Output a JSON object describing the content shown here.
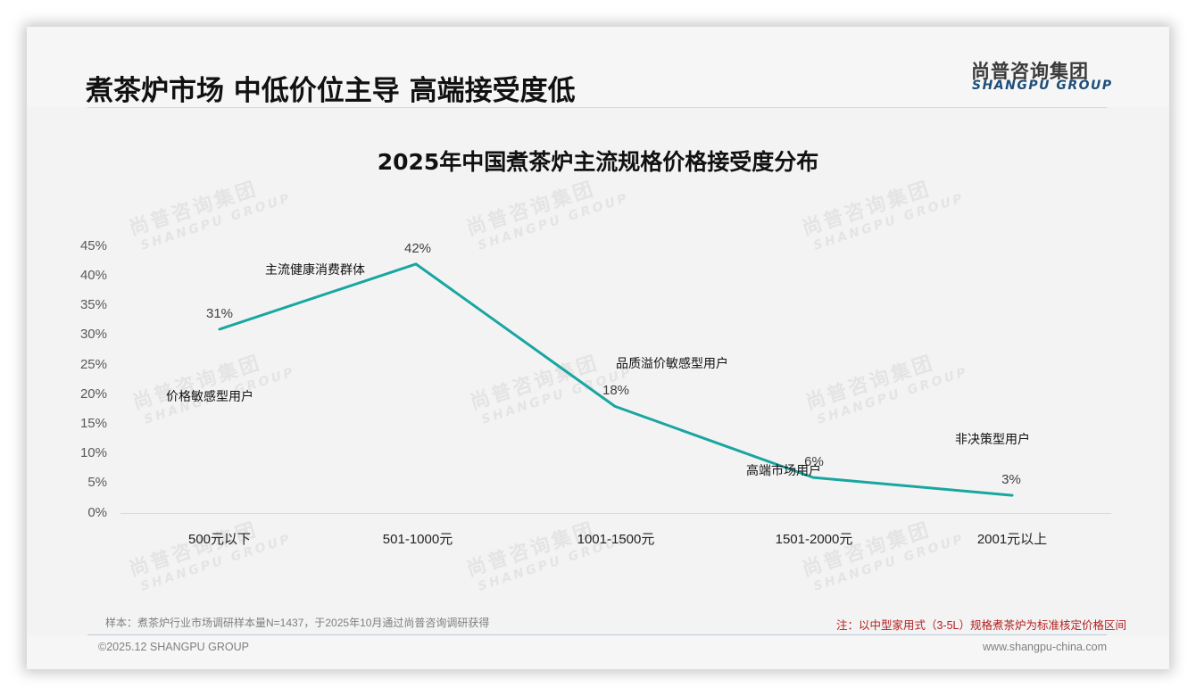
{
  "header": {
    "title": "煮茶炉市场 中低价位主导 高端接受度低",
    "logo_cn": "尚普咨询集团",
    "logo_en": "SHANGPU GROUP"
  },
  "watermark": {
    "cn": "尚普咨询集团",
    "en": "SHANGPU GROUP"
  },
  "chart_data": {
    "type": "line",
    "title": "2025年中国煮茶炉主流规格价格接受度分布",
    "categories": [
      "500元以下",
      "501-1000元",
      "1001-1500元",
      "1501-2000元",
      "2001元以上"
    ],
    "values": [
      31,
      42,
      18,
      6,
      3
    ],
    "value_labels": [
      "31%",
      "42%",
      "18%",
      "6%",
      "3%"
    ],
    "segment_annotations": [
      "价格敏感型用户",
      "主流健康消费群体",
      "品质溢价敏感型用户",
      "高端市场用户",
      "非决策型用户"
    ],
    "xlabel": "",
    "ylabel": "",
    "ylim": [
      0,
      45
    ],
    "y_ticks": [
      "45%",
      "40%",
      "35%",
      "30%",
      "25%",
      "20%",
      "15%",
      "10%",
      "5%",
      "0%"
    ],
    "grid": false,
    "legend": "none",
    "line_color": "#1aa6a0"
  },
  "footer": {
    "source": "样本：煮茶炉行业市场调研样本量N=1437，于2025年10月通过尚普咨询调研获得",
    "note": "注：以中型家用式（3-5L）规格煮茶炉为标准核定价格区间",
    "copyright": "©2025.12 SHANGPU GROUP",
    "website": "www.shangpu-china.com"
  },
  "colors": {
    "slide_bg": "#f3f3f3",
    "line": "#1aa6a0",
    "logo_en": "#1f4e79",
    "note_red": "#b22222"
  }
}
